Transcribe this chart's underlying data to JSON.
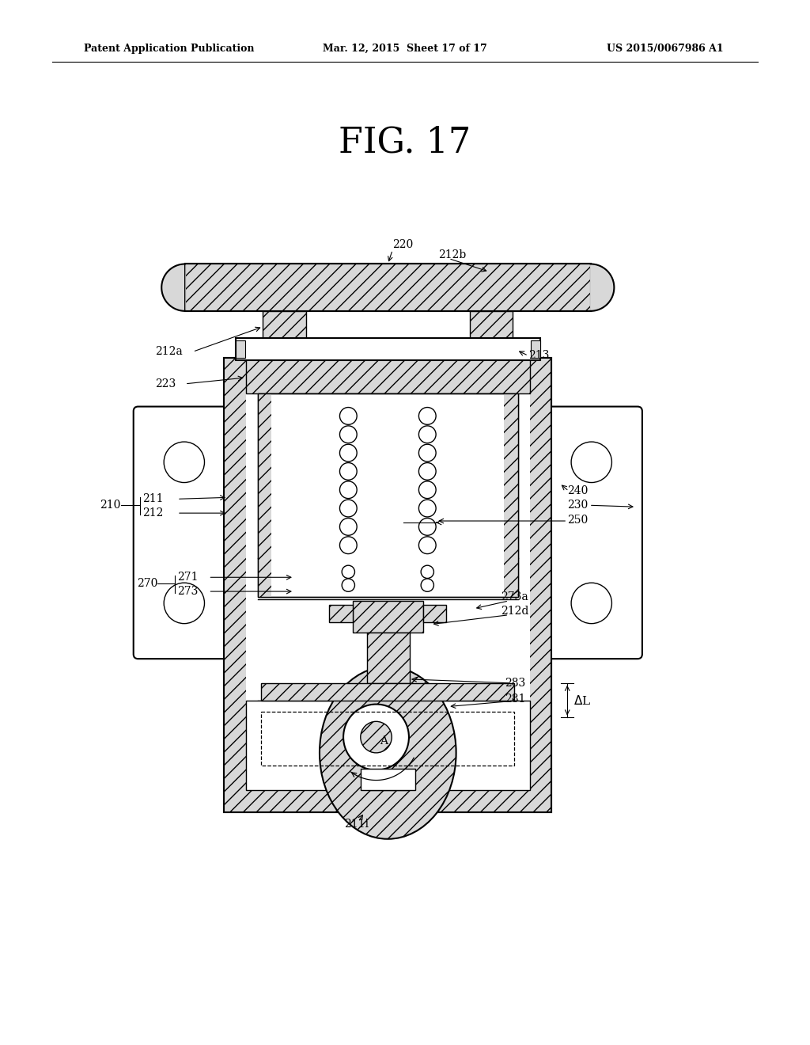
{
  "bg_color": "#ffffff",
  "header_left": "Patent Application Publication",
  "header_mid": "Mar. 12, 2015  Sheet 17 of 17",
  "header_right": "US 2015/0067986 A1",
  "fig_title": "FIG. 17"
}
